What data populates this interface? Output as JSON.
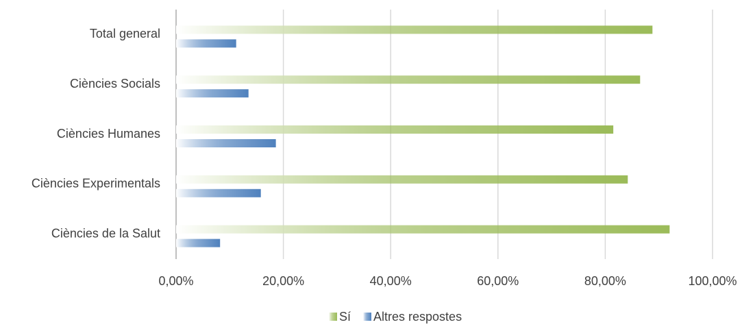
{
  "chart_data": {
    "type": "bar",
    "orientation": "horizontal",
    "categories": [
      "Total general",
      "Ciències Socials",
      "Ciències Humanes",
      "Ciències Experimentals",
      "Ciències de la Salut"
    ],
    "series": [
      {
        "name": "Sí",
        "color": "#9bbb59",
        "values": [
          88.8,
          86.5,
          81.5,
          84.2,
          92.0
        ]
      },
      {
        "name": "Altres respostes",
        "color": "#4f81bd",
        "values": [
          11.2,
          13.5,
          18.6,
          15.8,
          8.2
        ]
      }
    ],
    "xlim": [
      0,
      100
    ],
    "xticks": [
      {
        "value": 0,
        "label": "0,00%"
      },
      {
        "value": 20,
        "label": "20,00%"
      },
      {
        "value": 40,
        "label": "40,00%"
      },
      {
        "value": 60,
        "label": "60,00%"
      },
      {
        "value": 80,
        "label": "80,00%"
      },
      {
        "value": 100,
        "label": "100,00%"
      }
    ],
    "grid": true,
    "legend": "bottom"
  }
}
